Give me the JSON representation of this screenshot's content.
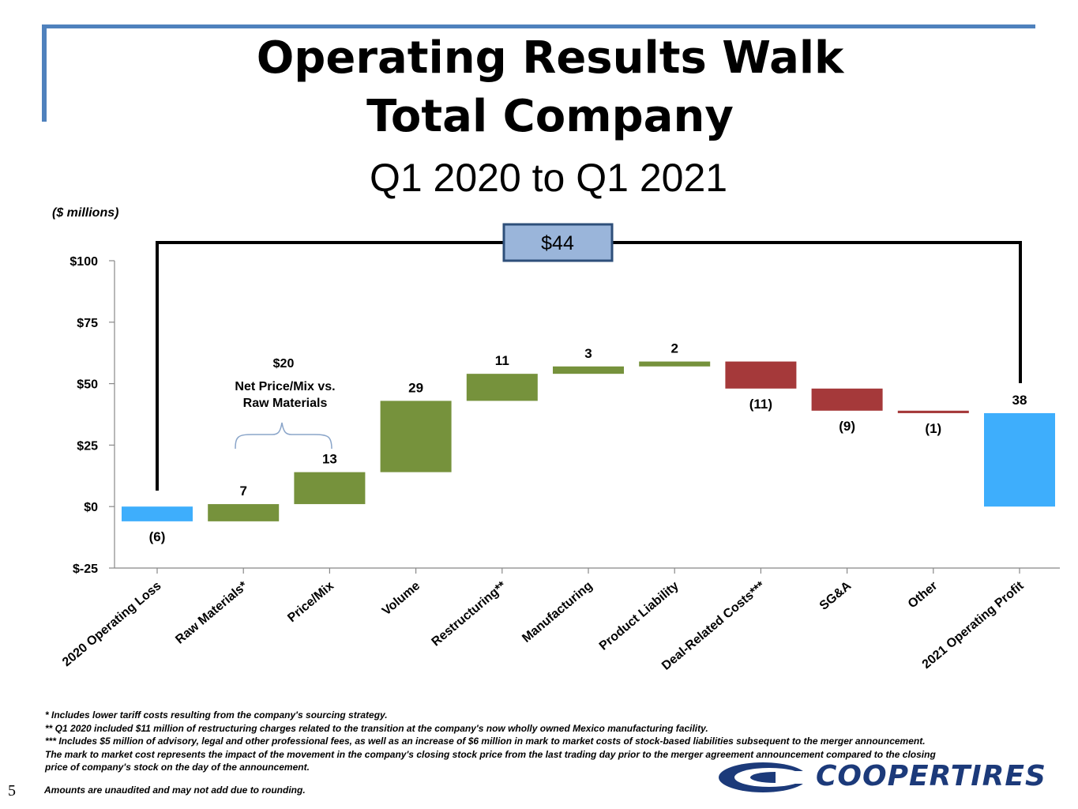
{
  "title_line1": "Operating Results Walk",
  "title_line2": "Total Company",
  "subtitle": "Q1 2020 to Q1 2021",
  "units": "($ millions)",
  "bracket_total": "$44",
  "annotation": {
    "line1": "$20",
    "line2": "Net Price/Mix vs.",
    "line3": "Raw Materials"
  },
  "colors": {
    "increase": "#76923c",
    "decrease": "#a5393a",
    "total": "#3eaefc",
    "accent": "#4f81bd",
    "box_fill": "#9ab5da",
    "box_border": "#2e4f7a"
  },
  "chart_data": {
    "type": "bar",
    "subtype": "waterfall",
    "categories": [
      "2020 Operating Loss",
      "Raw Materials*",
      "Price/Mix",
      "Volume",
      "Restructuring**",
      "Manufacturing",
      "Product Liability",
      "Deal-Related Costs***",
      "SG&A",
      "Other",
      "2021 Operating Profit"
    ],
    "values": [
      -6,
      7,
      13,
      29,
      11,
      3,
      2,
      -11,
      -9,
      -1,
      38
    ],
    "kinds": [
      "total",
      "increase",
      "increase",
      "increase",
      "increase",
      "increase",
      "increase",
      "decrease",
      "decrease",
      "decrease",
      "total"
    ],
    "labels": [
      "(6)",
      "7",
      "13",
      "29",
      "11",
      "3",
      "2",
      "(11)",
      "(9)",
      "(1)",
      "38"
    ],
    "ylim": [
      -25,
      100
    ],
    "yticks": [
      -25,
      0,
      25,
      50,
      75,
      100
    ],
    "ytick_labels": [
      "$-25",
      "$0",
      "$25",
      "$50",
      "$75",
      "$100"
    ],
    "title": "",
    "xlabel": "",
    "ylabel": "($ millions)",
    "grid": false
  },
  "footnotes": [
    "*   Includes lower tariff costs resulting from the company's sourcing strategy.",
    "**  Q1 2020 included $11 million of restructuring charges related to the transition at the company's now wholly owned Mexico manufacturing facility.",
    "*** Includes $5 million of advisory, legal and other professional fees, as well as an increase of $6 million in mark to market costs of stock-based liabilities subsequent to the merger announcement.",
    "The mark to market cost represents the impact of the movement in the company's closing stock price from the last trading day prior to the merger agreement announcement compared to the closing",
    "price of company's stock on the day of the announcement."
  ],
  "amounts_note": "Amounts are unaudited and may not add due to rounding.",
  "page_number": "5",
  "logo_text": "COOPERTIRES"
}
